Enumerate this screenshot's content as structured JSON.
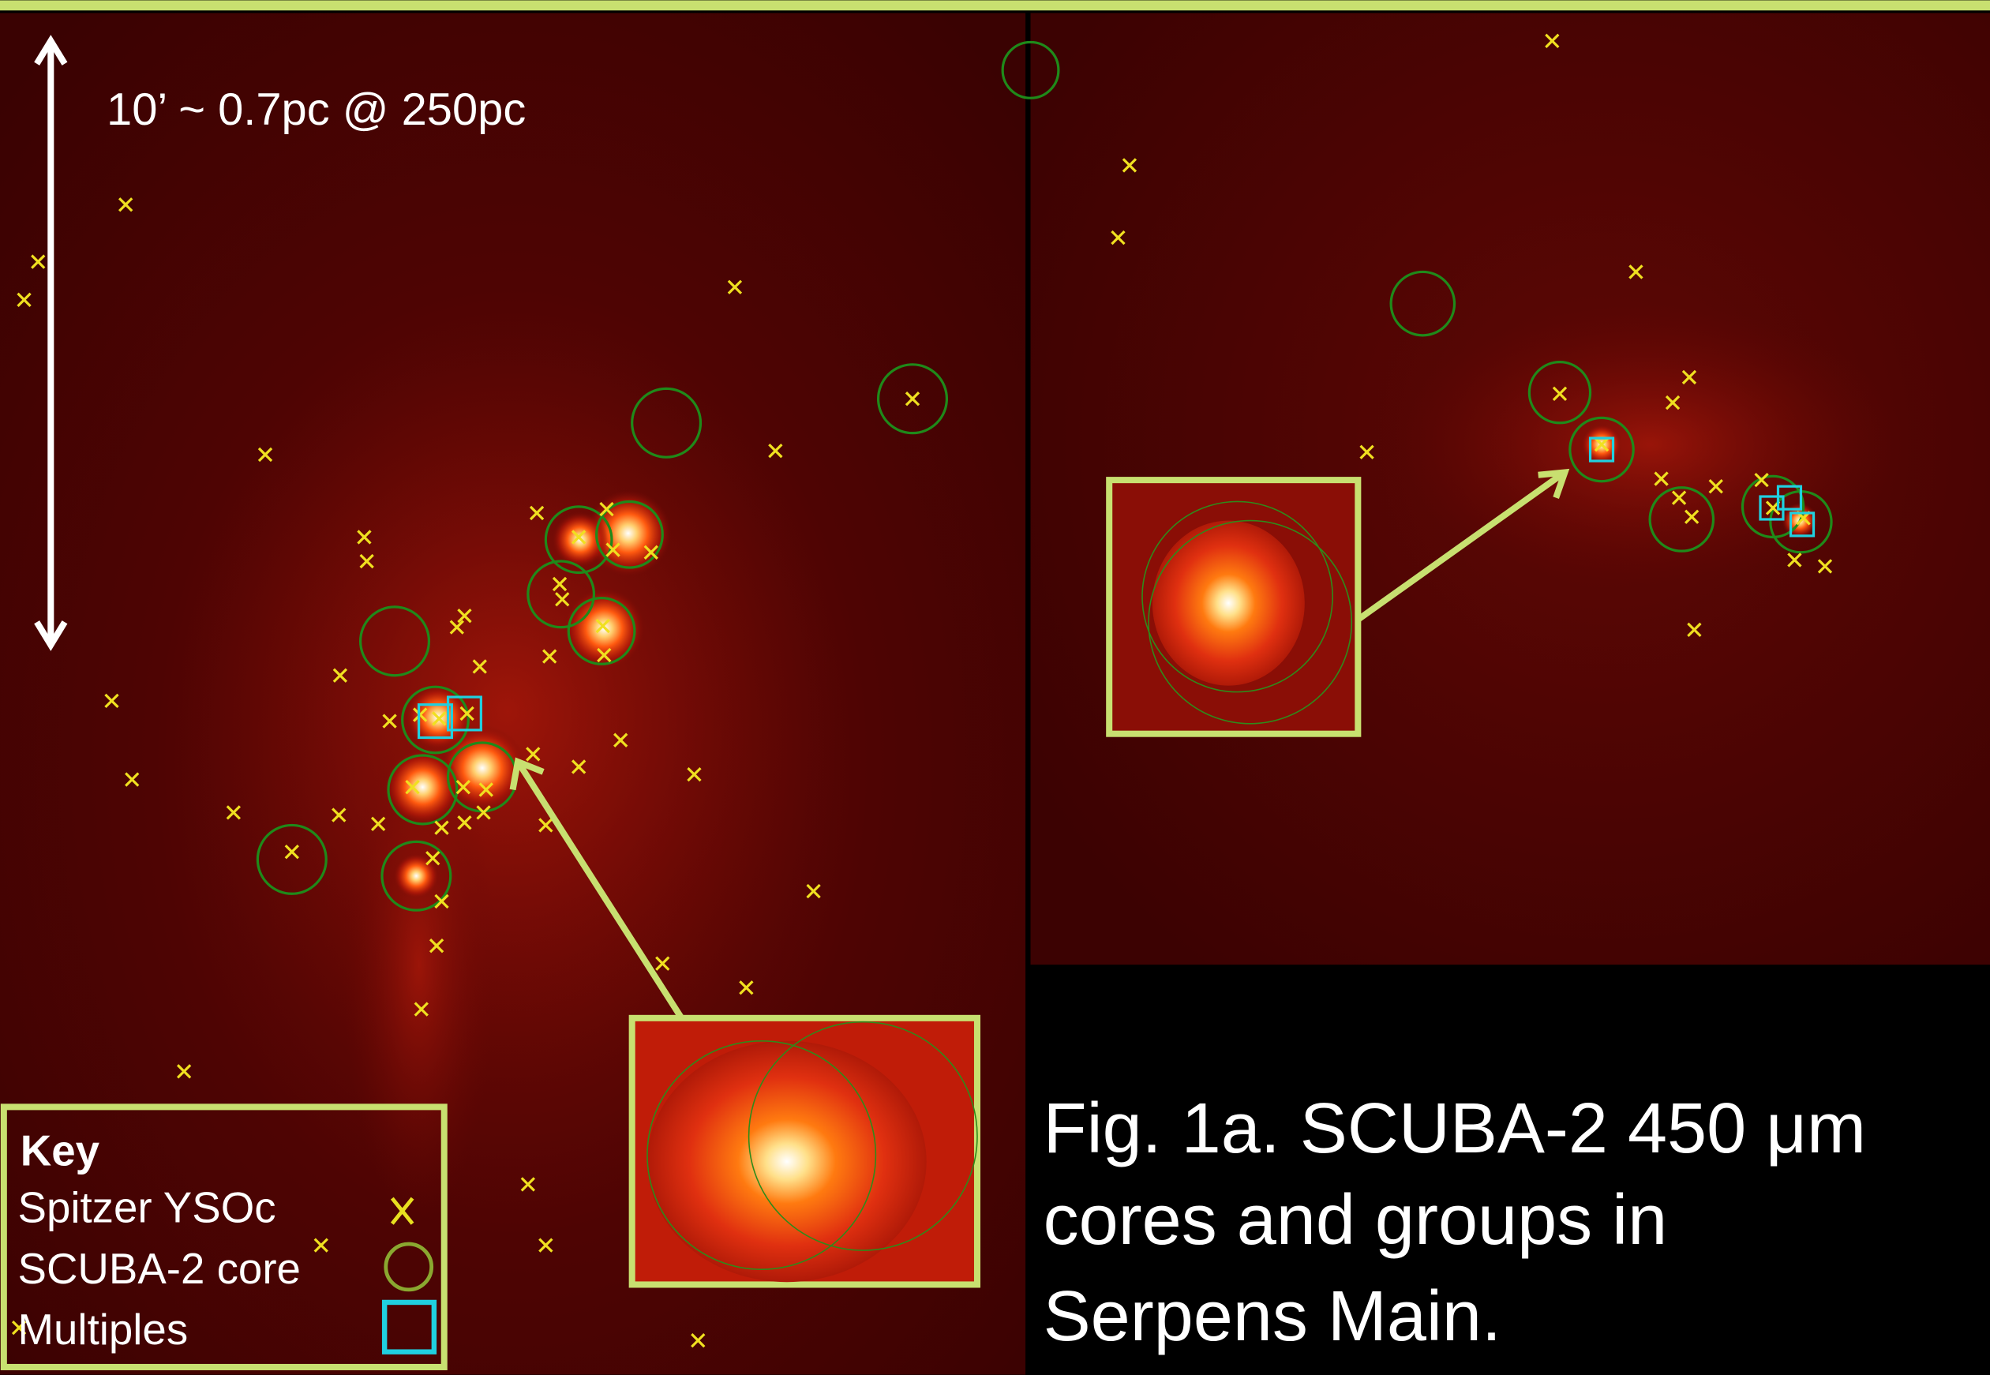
{
  "scale_label": "10’ ~ 0.7pc @ 250pc",
  "key": {
    "title": "Key",
    "items": [
      "Spitzer YSOc",
      "SCUBA-2 core",
      "Multiples"
    ]
  },
  "caption": [
    "Fig. 1a.  SCUBA-2 450 μm",
    "cores and groups in",
    "Serpens Main."
  ]
}
